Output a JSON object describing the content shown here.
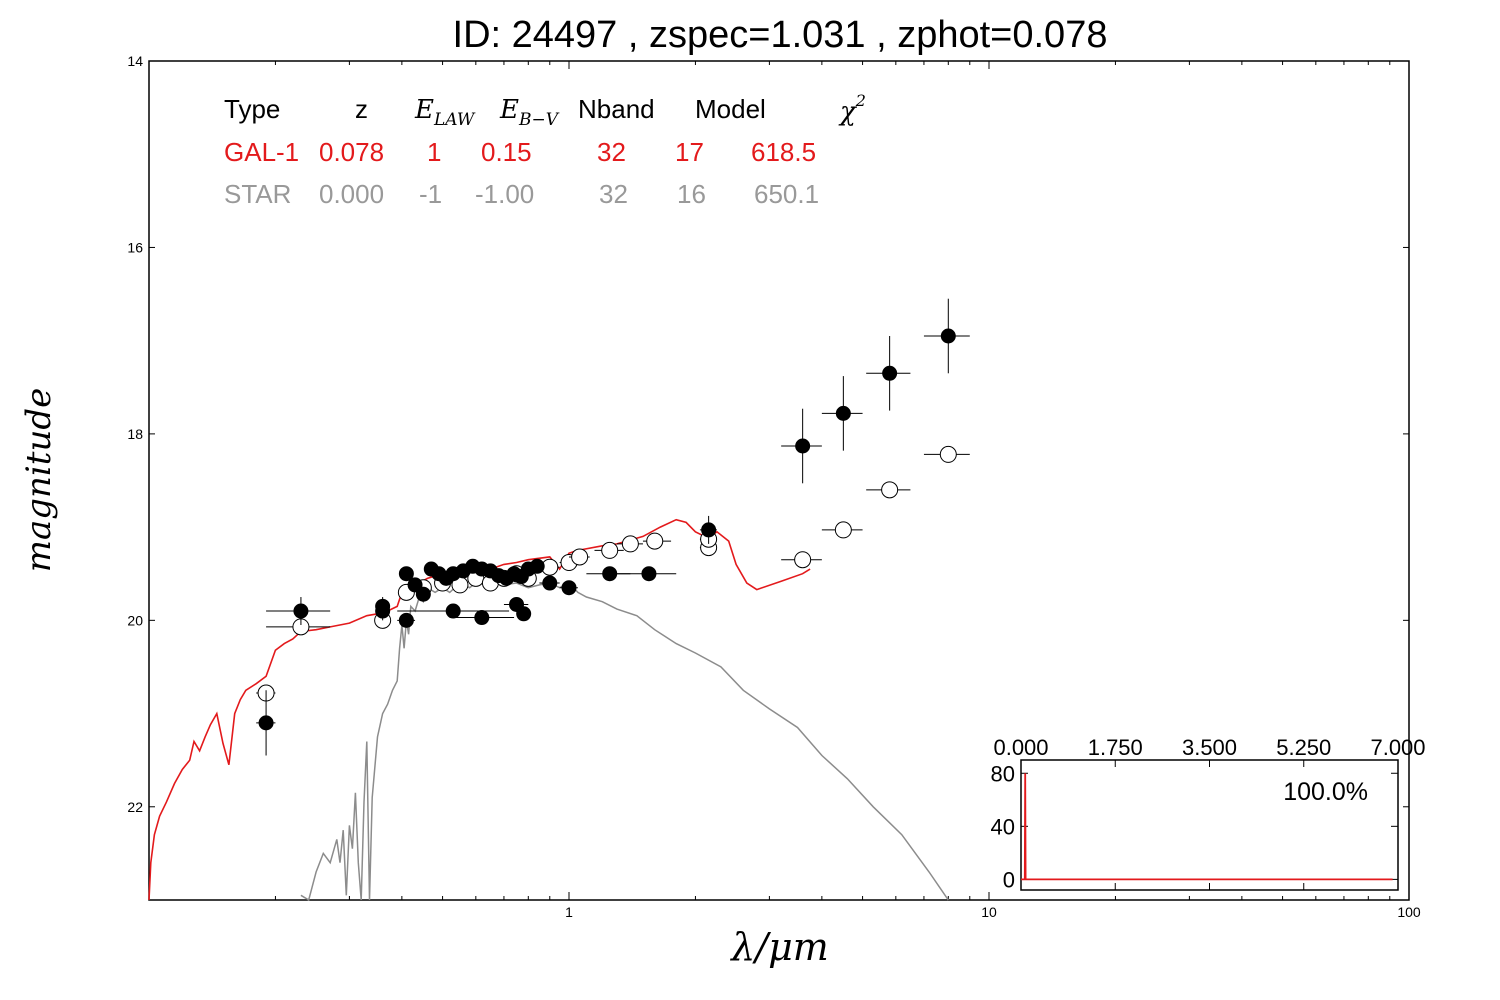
{
  "title": "ID:  24497 , zspec=1.031 , zphot=0.078",
  "colors": {
    "galaxy": "#e31a1c",
    "star": "#8c8c8c",
    "points": "#000000",
    "table_galaxy": "#e31a1c",
    "table_star": "#999999"
  },
  "info_table": {
    "headers": {
      "type": "Type",
      "z": "z",
      "elaw_base": "E",
      "elaw_sub": "LAW",
      "ebv_base": "E",
      "ebv_sub": "B−V",
      "nband": "Nband",
      "model": "Model",
      "chi_base": "χ",
      "chi_sup": "2"
    },
    "rows": [
      {
        "type": "GAL-1",
        "z": "0.078",
        "elaw": "1",
        "ebv": "0.15",
        "nband": "32",
        "model": "17",
        "chi2": "618.5",
        "kind": "galaxy"
      },
      {
        "type": "STAR",
        "z": "0.000",
        "elaw": "-1",
        "ebv": "-1.00",
        "nband": "32",
        "model": "16",
        "chi2": "650.1",
        "kind": "star"
      }
    ]
  },
  "chart_data": [
    {
      "type": "scatter",
      "title": "ID:  24497 , zspec=1.031 , zphot=0.078",
      "xlabel": "λ/μm",
      "ylabel": "magnitude",
      "xscale": "log",
      "xlim": [
        0.1,
        100
      ],
      "ylim": [
        23,
        14
      ],
      "x_ticks": [
        {
          "value": 1,
          "label": "1"
        },
        {
          "value": 10,
          "label": "10"
        },
        {
          "value": 100,
          "label": "100"
        }
      ],
      "y_ticks": [
        {
          "value": 14,
          "label": "14"
        },
        {
          "value": 16,
          "label": "16"
        },
        {
          "value": 18,
          "label": "18"
        },
        {
          "value": 20,
          "label": "20"
        },
        {
          "value": 22,
          "label": "22"
        }
      ],
      "observed": [
        {
          "x": 0.19,
          "y": 21.1,
          "xerr": [
            0.18,
            0.2
          ],
          "yerr": 0.35
        },
        {
          "x": 0.23,
          "y": 19.9,
          "xerr": [
            0.19,
            0.27
          ],
          "yerr": 0.15
        },
        {
          "x": 0.36,
          "y": 19.85,
          "xerr": [
            0.35,
            0.37
          ],
          "yerr": 0.1
        },
        {
          "x": 0.36,
          "y": 19.9,
          "xerr": [
            0.35,
            0.37
          ],
          "yerr": 0.1
        },
        {
          "x": 0.41,
          "y": 20.0,
          "xerr": [
            0.39,
            0.43
          ],
          "yerr": 0.05
        },
        {
          "x": 0.41,
          "y": 19.5,
          "xerr": [
            0.4,
            0.42
          ],
          "yerr": 0.05
        },
        {
          "x": 0.43,
          "y": 19.62,
          "xerr": [
            0.42,
            0.44
          ],
          "yerr": 0.05
        },
        {
          "x": 0.45,
          "y": 19.72,
          "xerr": [
            0.44,
            0.46
          ],
          "yerr": 0.05
        },
        {
          "x": 0.47,
          "y": 19.45,
          "xerr": [
            0.46,
            0.48
          ],
          "yerr": 0.05
        },
        {
          "x": 0.49,
          "y": 19.5,
          "xerr": [
            0.48,
            0.5
          ],
          "yerr": 0.05
        },
        {
          "x": 0.51,
          "y": 19.55,
          "xerr": [
            0.5,
            0.52
          ],
          "yerr": 0.05
        },
        {
          "x": 0.53,
          "y": 19.5,
          "xerr": [
            0.52,
            0.54
          ],
          "yerr": 0.05
        },
        {
          "x": 0.56,
          "y": 19.47,
          "xerr": [
            0.55,
            0.57
          ],
          "yerr": 0.05
        },
        {
          "x": 0.59,
          "y": 19.42,
          "xerr": [
            0.58,
            0.6
          ],
          "yerr": 0.05
        },
        {
          "x": 0.62,
          "y": 19.45,
          "xerr": [
            0.61,
            0.63
          ],
          "yerr": 0.05
        },
        {
          "x": 0.65,
          "y": 19.47,
          "xerr": [
            0.64,
            0.66
          ],
          "yerr": 0.05
        },
        {
          "x": 0.68,
          "y": 19.52,
          "xerr": [
            0.67,
            0.69
          ],
          "yerr": 0.05
        },
        {
          "x": 0.71,
          "y": 19.55,
          "xerr": [
            0.7,
            0.72
          ],
          "yerr": 0.05
        },
        {
          "x": 0.74,
          "y": 19.5,
          "xerr": [
            0.73,
            0.75
          ],
          "yerr": 0.05
        },
        {
          "x": 0.77,
          "y": 19.53,
          "xerr": [
            0.76,
            0.78
          ],
          "yerr": 0.05
        },
        {
          "x": 0.8,
          "y": 19.45,
          "xerr": [
            0.79,
            0.81
          ],
          "yerr": 0.05
        },
        {
          "x": 0.84,
          "y": 19.42,
          "xerr": [
            0.83,
            0.85
          ],
          "yerr": 0.05
        },
        {
          "x": 0.53,
          "y": 19.9,
          "xerr": [
            0.39,
            0.72
          ],
          "yerr": 0.05
        },
        {
          "x": 0.62,
          "y": 19.97,
          "xerr": [
            0.52,
            0.74
          ],
          "yerr": 0.05
        },
        {
          "x": 0.75,
          "y": 19.83,
          "xerr": [
            0.7,
            0.8
          ],
          "yerr": 0.05
        },
        {
          "x": 0.78,
          "y": 19.93,
          "xerr": [
            0.75,
            0.81
          ],
          "yerr": 0.05
        },
        {
          "x": 0.9,
          "y": 19.6,
          "xerr": [
            0.85,
            0.95
          ],
          "yerr": 0.05
        },
        {
          "x": 1.0,
          "y": 19.65,
          "xerr": [
            0.95,
            1.05
          ],
          "yerr": 0.05
        },
        {
          "x": 1.25,
          "y": 19.5,
          "xerr": [
            1.1,
            1.4
          ],
          "yerr": 0.05
        },
        {
          "x": 1.55,
          "y": 19.5,
          "xerr": [
            1.3,
            1.8
          ],
          "yerr": 0.05
        },
        {
          "x": 2.15,
          "y": 19.03,
          "xerr": [
            2.05,
            2.25
          ],
          "yerr": 0.15
        },
        {
          "x": 3.6,
          "y": 18.13,
          "xerr": [
            3.2,
            4.0
          ],
          "yerr": 0.4
        },
        {
          "x": 4.5,
          "y": 17.78,
          "xerr": [
            4.0,
            5.0
          ],
          "yerr": 0.4
        },
        {
          "x": 5.8,
          "y": 17.35,
          "xerr": [
            5.1,
            6.5
          ],
          "yerr": 0.4
        },
        {
          "x": 8.0,
          "y": 16.95,
          "xerr": [
            7.0,
            9.0
          ],
          "yerr": 0.4
        }
      ],
      "model_points": [
        {
          "x": 0.19,
          "y": 20.78,
          "xerr": [
            0.18,
            0.2
          ]
        },
        {
          "x": 0.23,
          "y": 20.07,
          "xerr": [
            0.19,
            0.27
          ]
        },
        {
          "x": 0.36,
          "y": 20.0,
          "xerr": [
            0.35,
            0.37
          ]
        },
        {
          "x": 0.41,
          "y": 19.7,
          "xerr": [
            0.4,
            0.42
          ]
        },
        {
          "x": 0.45,
          "y": 19.65,
          "xerr": [
            0.44,
            0.46
          ]
        },
        {
          "x": 0.5,
          "y": 19.6,
          "xerr": [
            0.49,
            0.51
          ]
        },
        {
          "x": 0.55,
          "y": 19.62,
          "xerr": [
            0.54,
            0.56
          ]
        },
        {
          "x": 0.6,
          "y": 19.55,
          "xerr": [
            0.59,
            0.61
          ]
        },
        {
          "x": 0.65,
          "y": 19.6,
          "xerr": [
            0.64,
            0.66
          ]
        },
        {
          "x": 0.7,
          "y": 19.55,
          "xerr": [
            0.69,
            0.71
          ]
        },
        {
          "x": 0.75,
          "y": 19.5,
          "xerr": [
            0.74,
            0.76
          ]
        },
        {
          "x": 0.8,
          "y": 19.55,
          "xerr": [
            0.79,
            0.81
          ]
        },
        {
          "x": 0.9,
          "y": 19.43,
          "xerr": [
            0.85,
            0.95
          ]
        },
        {
          "x": 1.0,
          "y": 19.38,
          "xerr": [
            0.95,
            1.05
          ]
        },
        {
          "x": 1.06,
          "y": 19.32,
          "xerr": [
            1.0,
            1.12
          ]
        },
        {
          "x": 1.25,
          "y": 19.25,
          "xerr": [
            1.15,
            1.35
          ]
        },
        {
          "x": 1.4,
          "y": 19.18,
          "xerr": [
            1.3,
            1.5
          ]
        },
        {
          "x": 1.6,
          "y": 19.15,
          "xerr": [
            1.5,
            1.75
          ]
        },
        {
          "x": 2.15,
          "y": 19.22,
          "xerr": [
            2.05,
            2.25
          ]
        },
        {
          "x": 2.15,
          "y": 19.13,
          "xerr": [
            2.05,
            2.25
          ]
        },
        {
          "x": 3.6,
          "y": 19.35,
          "xerr": [
            3.2,
            4.0
          ]
        },
        {
          "x": 4.5,
          "y": 19.03,
          "xerr": [
            4.0,
            5.0
          ]
        },
        {
          "x": 5.8,
          "y": 18.6,
          "xerr": [
            5.1,
            6.5
          ]
        },
        {
          "x": 8.0,
          "y": 18.22,
          "xerr": [
            7.0,
            9.0
          ]
        }
      ],
      "galaxy_template": [
        [
          0.1,
          23.0
        ],
        [
          0.101,
          22.6
        ],
        [
          0.103,
          22.3
        ],
        [
          0.106,
          22.1
        ],
        [
          0.11,
          21.95
        ],
        [
          0.115,
          21.75
        ],
        [
          0.12,
          21.6
        ],
        [
          0.125,
          21.5
        ],
        [
          0.128,
          21.3
        ],
        [
          0.132,
          21.4
        ],
        [
          0.136,
          21.25
        ],
        [
          0.14,
          21.12
        ],
        [
          0.145,
          21.0
        ],
        [
          0.15,
          21.32
        ],
        [
          0.155,
          21.55
        ],
        [
          0.16,
          21.0
        ],
        [
          0.165,
          20.85
        ],
        [
          0.17,
          20.75
        ],
        [
          0.18,
          20.68
        ],
        [
          0.19,
          20.6
        ],
        [
          0.2,
          20.32
        ],
        [
          0.21,
          20.25
        ],
        [
          0.22,
          20.2
        ],
        [
          0.23,
          20.12
        ],
        [
          0.25,
          20.1
        ],
        [
          0.27,
          20.07
        ],
        [
          0.3,
          20.03
        ],
        [
          0.33,
          19.95
        ],
        [
          0.35,
          19.93
        ],
        [
          0.37,
          19.9
        ],
        [
          0.39,
          19.85
        ],
        [
          0.4,
          19.7
        ],
        [
          0.41,
          19.75
        ],
        [
          0.42,
          19.65
        ],
        [
          0.44,
          19.6
        ],
        [
          0.46,
          19.55
        ],
        [
          0.5,
          19.5
        ],
        [
          0.55,
          19.45
        ],
        [
          0.6,
          19.42
        ],
        [
          0.65,
          19.45
        ],
        [
          0.7,
          19.4
        ],
        [
          0.75,
          19.38
        ],
        [
          0.8,
          19.35
        ],
        [
          0.9,
          19.32
        ],
        [
          0.95,
          19.45
        ],
        [
          1.0,
          19.28
        ],
        [
          1.05,
          19.25
        ],
        [
          1.2,
          19.2
        ],
        [
          1.3,
          19.18
        ],
        [
          1.5,
          19.1
        ],
        [
          1.65,
          19.0
        ],
        [
          1.8,
          18.92
        ],
        [
          1.9,
          18.95
        ],
        [
          2.0,
          19.05
        ],
        [
          2.15,
          19.12
        ],
        [
          2.25,
          19.05
        ],
        [
          2.4,
          19.15
        ],
        [
          2.5,
          19.4
        ],
        [
          2.65,
          19.6
        ],
        [
          2.8,
          19.67
        ],
        [
          3.2,
          19.58
        ],
        [
          3.6,
          19.5
        ],
        [
          3.75,
          19.45
        ]
      ],
      "star_template": [
        [
          0.23,
          22.95
        ],
        [
          0.24,
          23.0
        ],
        [
          0.25,
          22.7
        ],
        [
          0.26,
          22.5
        ],
        [
          0.27,
          22.6
        ],
        [
          0.28,
          22.35
        ],
        [
          0.285,
          22.6
        ],
        [
          0.29,
          22.25
        ],
        [
          0.295,
          22.95
        ],
        [
          0.3,
          22.2
        ],
        [
          0.305,
          22.45
        ],
        [
          0.31,
          21.85
        ],
        [
          0.315,
          22.6
        ],
        [
          0.32,
          23.0
        ],
        [
          0.325,
          21.95
        ],
        [
          0.33,
          21.3
        ],
        [
          0.335,
          23.0
        ],
        [
          0.34,
          21.9
        ],
        [
          0.35,
          21.25
        ],
        [
          0.36,
          21.0
        ],
        [
          0.37,
          20.9
        ],
        [
          0.38,
          20.75
        ],
        [
          0.39,
          20.65
        ],
        [
          0.395,
          20.3
        ],
        [
          0.4,
          20.05
        ],
        [
          0.405,
          20.3
        ],
        [
          0.41,
          20.0
        ],
        [
          0.415,
          20.15
        ],
        [
          0.42,
          19.85
        ],
        [
          0.43,
          19.9
        ],
        [
          0.44,
          19.75
        ],
        [
          0.45,
          19.8
        ],
        [
          0.46,
          19.65
        ],
        [
          0.48,
          19.7
        ],
        [
          0.5,
          19.65
        ],
        [
          0.52,
          19.7
        ],
        [
          0.55,
          19.6
        ],
        [
          0.58,
          19.65
        ],
        [
          0.6,
          19.6
        ],
        [
          0.65,
          19.6
        ],
        [
          0.7,
          19.62
        ],
        [
          0.75,
          19.6
        ],
        [
          0.8,
          19.65
        ],
        [
          0.85,
          19.62
        ],
        [
          0.9,
          19.6
        ],
        [
          0.95,
          19.65
        ],
        [
          1.0,
          19.6
        ],
        [
          1.05,
          19.7
        ],
        [
          1.1,
          19.75
        ],
        [
          1.2,
          19.8
        ],
        [
          1.3,
          19.88
        ],
        [
          1.45,
          19.95
        ],
        [
          1.6,
          20.1
        ],
        [
          1.8,
          20.25
        ],
        [
          2.0,
          20.35
        ],
        [
          2.3,
          20.5
        ],
        [
          2.6,
          20.75
        ],
        [
          3.0,
          20.95
        ],
        [
          3.5,
          21.15
        ],
        [
          4.0,
          21.45
        ],
        [
          4.6,
          21.7
        ],
        [
          5.3,
          22.0
        ],
        [
          6.2,
          22.3
        ],
        [
          7.2,
          22.7
        ],
        [
          8.0,
          23.0
        ]
      ]
    },
    {
      "type": "line",
      "title": "",
      "annotation": "100.0%",
      "xlim": [
        0,
        7
      ],
      "ylim": [
        -8,
        90
      ],
      "x_ticks": [
        {
          "value": 0,
          "label": "0.000"
        },
        {
          "value": 1.75,
          "label": "1.750"
        },
        {
          "value": 3.5,
          "label": "3.500"
        },
        {
          "value": 5.25,
          "label": "5.250"
        },
        {
          "value": 7,
          "label": "7.000"
        }
      ],
      "y_ticks": [
        {
          "value": 0,
          "label": "0"
        },
        {
          "value": 40,
          "label": "40"
        },
        {
          "value": 80,
          "label": "80"
        }
      ],
      "series": [
        {
          "x": [
            0,
            0.05,
            0.07,
            0.078,
            0.086,
            0.11,
            0.2,
            6.9
          ],
          "y": [
            0,
            0,
            0,
            80,
            0,
            0,
            0,
            0
          ]
        }
      ]
    }
  ]
}
